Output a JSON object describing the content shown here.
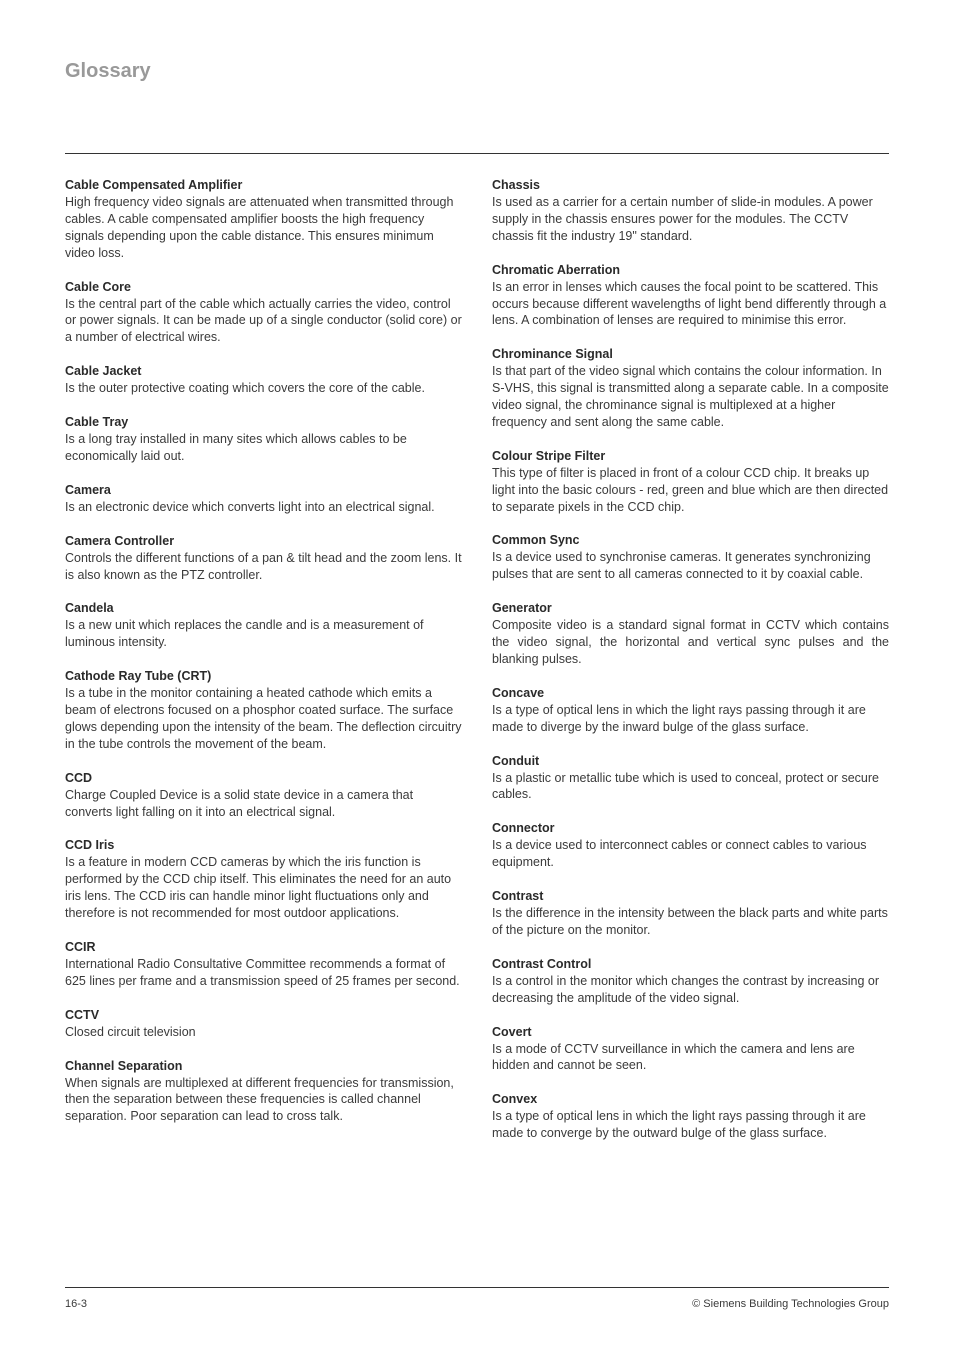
{
  "page": {
    "title": "Glossary",
    "footer_left": "16-3",
    "footer_right": "© Siemens Building Technologies Group"
  },
  "left": [
    {
      "term": "Cable Compensated Amplifier",
      "def": "High frequency video signals are attenuated when transmitted through cables. A cable compensated amplifier boosts the high frequency signals depending upon the cable distance. This ensures minimum video loss."
    },
    {
      "term": "Cable Core",
      "def": "Is the central part of the cable which actually carries the video, control or power signals. It can be made up of a single conductor (solid core) or a number of electrical wires."
    },
    {
      "term": "Cable Jacket",
      "def": "Is the outer protective coating which covers the core of the cable."
    },
    {
      "term": "Cable Tray",
      "def": "Is a long tray installed in many sites which allows cables to be economically laid out."
    },
    {
      "term": "Camera",
      "def": "Is an electronic device which converts light into an electrical signal."
    },
    {
      "term": "Camera Controller",
      "def": "Controls the different functions of a pan & tilt head and the zoom lens. It is also known as the PTZ controller."
    },
    {
      "term": "Candela",
      "def": "Is a new unit which replaces the candle and is a measurement of luminous intensity."
    },
    {
      "term": "Cathode Ray Tube (CRT)",
      "def": "Is a tube in the monitor containing a heated cathode which emits a beam of electrons focused on a phosphor coated surface. The surface glows depending upon the intensity of the beam. The deflection circuitry in the tube controls the movement of the beam."
    },
    {
      "term": "CCD",
      "def": "Charge Coupled Device is a solid state device in a camera that converts light falling on it into an electrical signal."
    },
    {
      "term": "CCD Iris",
      "def": "Is a feature in modern CCD cameras by which the iris function is performed by the CCD chip itself. This eliminates the need for an auto iris lens. The CCD iris can handle minor light fluctuations only and therefore is not recommended for most outdoor applications."
    },
    {
      "term": "CCIR",
      "def": "International Radio Consultative Committee recommends a format of 625 lines per frame and a transmission speed of 25 frames per second."
    },
    {
      "term": "CCTV",
      "def": "Closed circuit television"
    },
    {
      "term": "Channel Separation",
      "def": "When signals are multiplexed at different frequencies for transmission, then the separation between these frequencies is called channel separation. Poor separation can lead to cross talk."
    }
  ],
  "right": [
    {
      "term": "Chassis",
      "def": "Is used as a carrier for a certain number of slide-in modules. A power supply in the chassis ensures power for the modules. The CCTV chassis fit the industry 19\" standard."
    },
    {
      "term": "Chromatic Aberration",
      "def": "Is an error in lenses which causes the focal point to be scattered. This occurs because different wavelengths of light bend differently through a lens. A combination of lenses are required to minimise this error."
    },
    {
      "term": "Chrominance Signal",
      "def": "Is that part of the video signal which contains the colour information. In S-VHS, this signal is transmitted along a separate cable. In a composite video signal, the chrominance signal is multiplexed at a higher frequency and sent along the same cable."
    },
    {
      "term": "Colour Stripe Filter",
      "def": "This type of filter is placed in front of a colour CCD chip. It breaks up light into the basic colours - red, green and blue which are then directed to separate pixels in the CCD chip."
    },
    {
      "term": "Common Sync",
      "def": "Is a device used to synchronise cameras. It generates synchronizing pulses that are sent to all cameras connected to it by coaxial cable."
    },
    {
      "term": "Generator",
      "def": "Composite video is a standard signal format in CCTV which contains the video signal, the horizontal and vertical sync pulses and the blanking pulses.",
      "justify": true
    },
    {
      "term": "Concave",
      "def": "Is a type of optical lens in which the light rays passing through it are made to diverge by the inward bulge of the glass surface."
    },
    {
      "term": "Conduit",
      "def": "Is a plastic or metallic tube which is used to conceal, protect or secure cables."
    },
    {
      "term": "Connector",
      "def": "Is a device used to interconnect cables or connect cables to various equipment."
    },
    {
      "term": "Contrast",
      "def": "Is the difference in the intensity between the black parts and white parts of the picture on the monitor."
    },
    {
      "term": "Contrast Control",
      "def": "Is a control in the monitor which changes the contrast by increasing or decreasing the amplitude of the video signal."
    },
    {
      "term": "Covert",
      "def": "Is a mode of CCTV surveillance in which the camera and lens are hidden and cannot be seen."
    },
    {
      "term": "Convex",
      "def": "Is a type of optical lens in which the light rays passing through it are made to converge by the outward bulge of the glass surface."
    }
  ]
}
